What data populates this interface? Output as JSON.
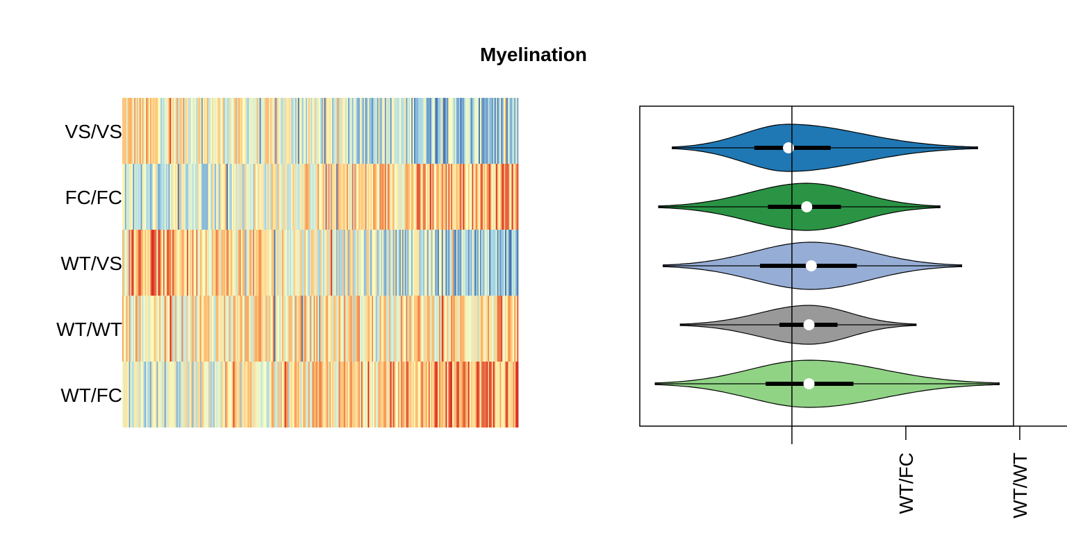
{
  "chart_data": [
    {
      "type": "heatmap",
      "title": "Myelination",
      "rows": [
        "VS/VS",
        "FC/FC",
        "WT/VS",
        "WT/WT",
        "WT/FC"
      ],
      "row_trends": [
        {
          "row": "VS/VS",
          "start": 0.2,
          "end": -0.6
        },
        {
          "row": "FC/FC",
          "start": -0.35,
          "end": 0.55
        },
        {
          "row": "WT/VS",
          "start": 0.55,
          "end": -0.65
        },
        {
          "row": "WT/WT",
          "start": 0.1,
          "end": 0.2
        },
        {
          "row": "WT/FC",
          "start": -0.35,
          "end": 0.65
        }
      ],
      "colors": {
        "low": "#4575b4",
        "mid_low": "#abd9e9",
        "mid": "#ffffbf",
        "mid_high": "#fdae61",
        "high": "#d73027"
      }
    },
    {
      "type": "violin",
      "groups": [
        {
          "name": "VS/VS",
          "color": "#1f78b4",
          "min": -1.05,
          "q1": -0.33,
          "median": -0.03,
          "q3": 0.34,
          "max": 1.63
        },
        {
          "name": "FC/FC",
          "color": "#2a9444",
          "min": -1.17,
          "q1": -0.21,
          "median": 0.13,
          "q3": 0.43,
          "max": 1.3
        },
        {
          "name": "WT/VS",
          "color": "#96aed6",
          "min": -1.13,
          "q1": -0.28,
          "median": 0.17,
          "q3": 0.57,
          "max": 1.49
        },
        {
          "name": "WT/WT",
          "color": "#999999",
          "min": -0.98,
          "q1": -0.11,
          "median": 0.15,
          "q3": 0.4,
          "max": 1.09
        },
        {
          "name": "WT/FC",
          "color": "#90d385",
          "min": -1.2,
          "q1": -0.23,
          "median": 0.15,
          "q3": 0.54,
          "max": 1.82
        }
      ],
      "x_tick_labels": [
        "WT/FC",
        "WT/WT"
      ],
      "reference_line_x": 0
    }
  ]
}
